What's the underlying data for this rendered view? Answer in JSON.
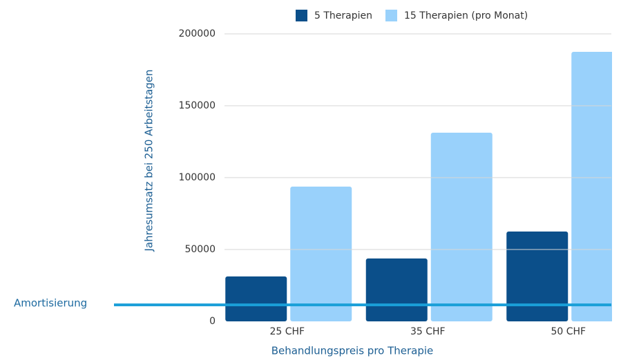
{
  "chart_data": {
    "type": "bar",
    "categories": [
      "25 CHF",
      "35 CHF",
      "50 CHF"
    ],
    "series": [
      {
        "name": "5 Therapien",
        "color": "#0b4f8a",
        "values": [
          31250,
          43750,
          62500
        ]
      },
      {
        "name": "15 Therapien (pro Monat)",
        "color": "#99d1fb",
        "values": [
          93750,
          131250,
          187500
        ]
      }
    ],
    "ylim": [
      0,
      200000
    ],
    "yticks": [
      0,
      50000,
      100000,
      150000,
      200000
    ],
    "grid": true,
    "y_label": "Jahresumsatz bei 250 Arbeitstagen",
    "x_label": "Behandlungspreis pro Therapie",
    "legend": "top",
    "annotation": {
      "label": "Amortisierung",
      "value": 11500,
      "color": "#1a9fd8"
    }
  }
}
